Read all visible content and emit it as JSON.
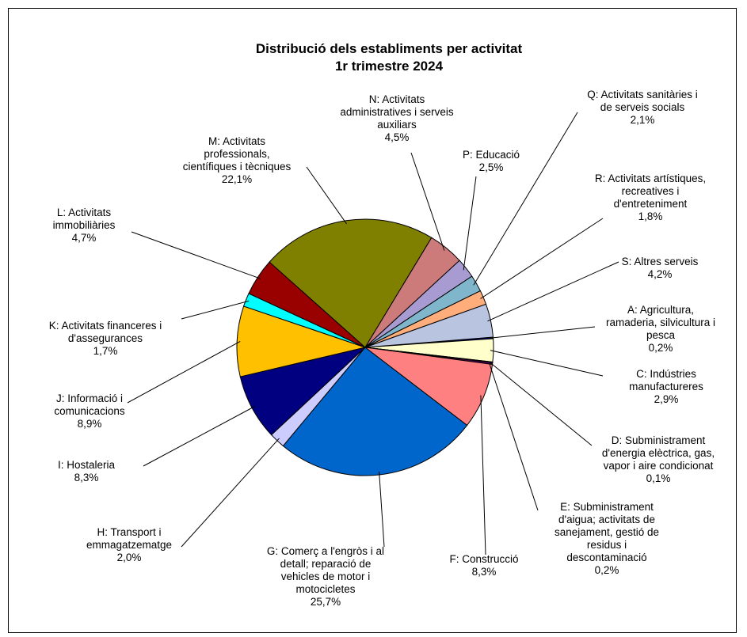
{
  "chart_data": {
    "type": "pie",
    "title": "Distribució dels establiments per activitat",
    "subtitle": "1r trimestre 2024",
    "slices": [
      {
        "key": "A",
        "label_lines": [
          "A: Agricultura,",
          "ramaderia, silvicultura i",
          "pesca"
        ],
        "value_text": "0,2%",
        "value": 0.2,
        "color": "#000080"
      },
      {
        "key": "C",
        "label_lines": [
          "C: Indústries",
          "manufactureres"
        ],
        "value_text": "2,9%",
        "value": 2.9,
        "color": "#ffffcc"
      },
      {
        "key": "D",
        "label_lines": [
          "D: Subministrament",
          "d'energia elèctrica, gas,",
          "vapor i aire condicionat"
        ],
        "value_text": "0,1%",
        "value": 0.1,
        "color": "#ff00ff"
      },
      {
        "key": "E",
        "label_lines": [
          "E: Subministrament",
          "d'aigua; activitats de",
          "sanejament, gestió de",
          "residus i",
          "descontaminació"
        ],
        "value_text": "0,2%",
        "value": 0.2,
        "color": "#800080"
      },
      {
        "key": "F",
        "label_lines": [
          "F: Construcció"
        ],
        "value_text": "8,3%",
        "value": 8.3,
        "color": "#ff8080"
      },
      {
        "key": "G",
        "label_lines": [
          "G: Comerç  a l'engròs i al",
          "detall; reparació de",
          "vehicles de motor i",
          "motocicletes"
        ],
        "value_text": "25,7%",
        "value": 25.7,
        "color": "#0066cc"
      },
      {
        "key": "H",
        "label_lines": [
          "H: Transport i",
          "emmagatzematge"
        ],
        "value_text": "2,0%",
        "value": 2.0,
        "color": "#ccccff"
      },
      {
        "key": "I",
        "label_lines": [
          "I: Hostaleria"
        ],
        "value_text": "8,3%",
        "value": 8.3,
        "color": "#000080"
      },
      {
        "key": "J",
        "label_lines": [
          "J: Informació i",
          "comunicacions"
        ],
        "value_text": "8,9%",
        "value": 8.9,
        "color": "#ffc000"
      },
      {
        "key": "K",
        "label_lines": [
          "K: Activitats financeres i",
          "d'assegurances"
        ],
        "value_text": "1,7%",
        "value": 1.7,
        "color": "#00ffff"
      },
      {
        "key": "L",
        "label_lines": [
          "L: Activitats",
          "immobiliàries"
        ],
        "value_text": "4,7%",
        "value": 4.7,
        "color": "#990000"
      },
      {
        "key": "M",
        "label_lines": [
          "M: Activitats",
          "professionals,",
          "científiques i tècniques"
        ],
        "value_text": "22,1%",
        "value": 22.1,
        "color": "#808000"
      },
      {
        "key": "N",
        "label_lines": [
          "N: Activitats",
          "administratives i serveis",
          "auxiliars"
        ],
        "value_text": "4,5%",
        "value": 4.5,
        "color": "#cc7a7a"
      },
      {
        "key": "P",
        "label_lines": [
          "P: Educació"
        ],
        "value_text": "2,5%",
        "value": 2.5,
        "color": "#a79bd1"
      },
      {
        "key": "Q",
        "label_lines": [
          "Q: Activitats sanitàries i",
          "de serveis socials"
        ],
        "value_text": "2,1%",
        "value": 2.1,
        "color": "#7fb6cc"
      },
      {
        "key": "R",
        "label_lines": [
          "R: Activitats artístiques,",
          "recreatives i",
          "d'entreteniment"
        ],
        "value_text": "1,8%",
        "value": 1.8,
        "color": "#ffad7a"
      },
      {
        "key": "S",
        "label_lines": [
          "S: Altres serveis"
        ],
        "value_text": "4,2%",
        "value": 4.2,
        "color": "#b8c4e0"
      }
    ]
  }
}
